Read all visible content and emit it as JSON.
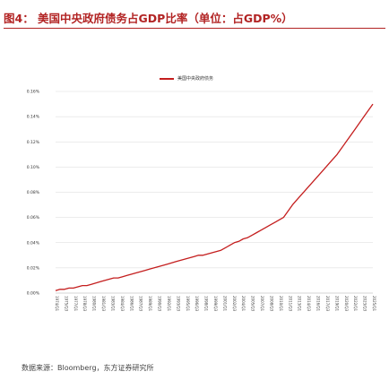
{
  "figure": {
    "title": "图4：  美国中央政府债务占GDP比率（单位：占GDP%）",
    "source": "数据来源：Bloomberg，东方证券研究所"
  },
  "colors": {
    "line": "#c41e1e",
    "title": "#b22323",
    "grid": "#d9d9d9"
  },
  "chart_data": {
    "type": "line",
    "title": "",
    "xlabel": "",
    "ylabel": "",
    "ylim": [
      0,
      0.16
    ],
    "y_ticks": [
      0,
      0.02,
      0.04,
      0.06,
      0.08,
      0.1,
      0.12,
      0.14,
      0.16
    ],
    "y_tick_labels": [
      "0.00%",
      "0.02%",
      "0.04%",
      "0.06%",
      "0.08%",
      "0.10%",
      "0.12%",
      "0.14%",
      "0.16%"
    ],
    "grid": true,
    "legend_position": "top-center",
    "series": [
      {
        "name": "美国中央政府债务",
        "values": [
          0.002,
          0.003,
          0.003,
          0.004,
          0.004,
          0.005,
          0.006,
          0.006,
          0.007,
          0.008,
          0.009,
          0.01,
          0.011,
          0.012,
          0.012,
          0.013,
          0.014,
          0.015,
          0.016,
          0.017,
          0.018,
          0.019,
          0.02,
          0.021,
          0.022,
          0.023,
          0.024,
          0.025,
          0.026,
          0.027,
          0.028,
          0.029,
          0.03,
          0.03,
          0.031,
          0.032,
          0.033,
          0.034,
          0.036,
          0.038,
          0.04,
          0.041,
          0.043,
          0.044,
          0.046,
          0.048,
          0.05,
          0.052,
          0.054,
          0.056,
          0.058,
          0.06,
          0.065,
          0.07,
          0.074,
          0.078,
          0.082,
          0.086,
          0.09,
          0.094,
          0.098,
          0.102,
          0.106,
          0.11,
          0.115,
          0.12,
          0.125,
          0.13,
          0.135,
          0.14,
          0.145,
          0.15
        ]
      }
    ],
    "x_tick_labels": [
      "1974/Q1",
      "1975/Q3",
      "1977/Q1",
      "1978/Q3",
      "1980/Q1",
      "1981/Q3",
      "1983/Q1",
      "1984/Q3",
      "1986/Q1",
      "1987/Q3",
      "1989/Q1",
      "1990/Q3",
      "1992/Q1",
      "1993/Q3",
      "1995/Q1",
      "1996/Q3",
      "1998/Q1",
      "1999/Q3",
      "2001/Q1",
      "2002/Q3",
      "2004/Q1",
      "2005/Q3",
      "2007/Q1",
      "2008/Q3",
      "2010/Q1",
      "2011/Q3",
      "2013/Q1",
      "2014/Q3",
      "2016/Q1",
      "2017/Q3",
      "2019/Q1",
      "2020/Q3",
      "2022/Q1",
      "2023/Q3",
      "2025/Q1"
    ]
  }
}
